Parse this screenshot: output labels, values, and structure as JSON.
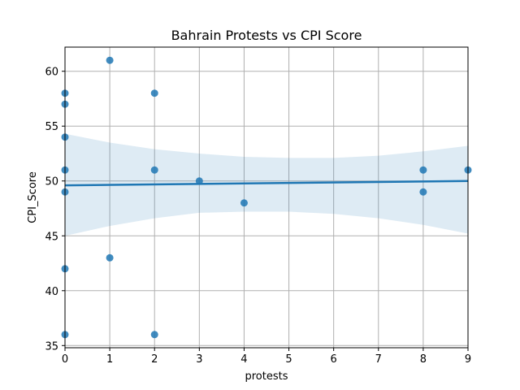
{
  "chart_data": {
    "type": "scatter",
    "title": "Bahrain Protests vs CPI Score",
    "xlabel": "protests",
    "ylabel": "CPI_Score",
    "xlim": [
      0,
      9
    ],
    "ylim": [
      34.8,
      62.2
    ],
    "x_ticks": [
      0,
      1,
      2,
      3,
      4,
      5,
      6,
      7,
      8,
      9
    ],
    "y_ticks": [
      35,
      40,
      45,
      50,
      55,
      60
    ],
    "grid": true,
    "point_color": "#1f77b4",
    "line_color": "#1f77b4",
    "band_color": "#1f77b4",
    "points": [
      {
        "x": 0,
        "y": 58
      },
      {
        "x": 0,
        "y": 57
      },
      {
        "x": 0,
        "y": 54
      },
      {
        "x": 0,
        "y": 51
      },
      {
        "x": 0,
        "y": 49
      },
      {
        "x": 0,
        "y": 42
      },
      {
        "x": 0,
        "y": 36
      },
      {
        "x": 1,
        "y": 61
      },
      {
        "x": 1,
        "y": 43
      },
      {
        "x": 2,
        "y": 58
      },
      {
        "x": 2,
        "y": 51
      },
      {
        "x": 2,
        "y": 36
      },
      {
        "x": 3,
        "y": 50
      },
      {
        "x": 4,
        "y": 48
      },
      {
        "x": 8,
        "y": 51
      },
      {
        "x": 8,
        "y": 49
      },
      {
        "x": 9,
        "y": 51
      }
    ],
    "regression_line": {
      "x": [
        0,
        9
      ],
      "y": [
        49.6,
        50.0
      ]
    },
    "confidence_band": {
      "x": [
        0,
        1,
        2,
        3,
        4,
        5,
        6,
        7,
        8,
        9
      ],
      "upper": [
        54.3,
        53.5,
        52.9,
        52.5,
        52.2,
        52.1,
        52.1,
        52.3,
        52.7,
        53.2
      ],
      "lower": [
        45.0,
        45.9,
        46.6,
        47.1,
        47.2,
        47.2,
        47.0,
        46.6,
        46.0,
        45.2
      ]
    }
  }
}
